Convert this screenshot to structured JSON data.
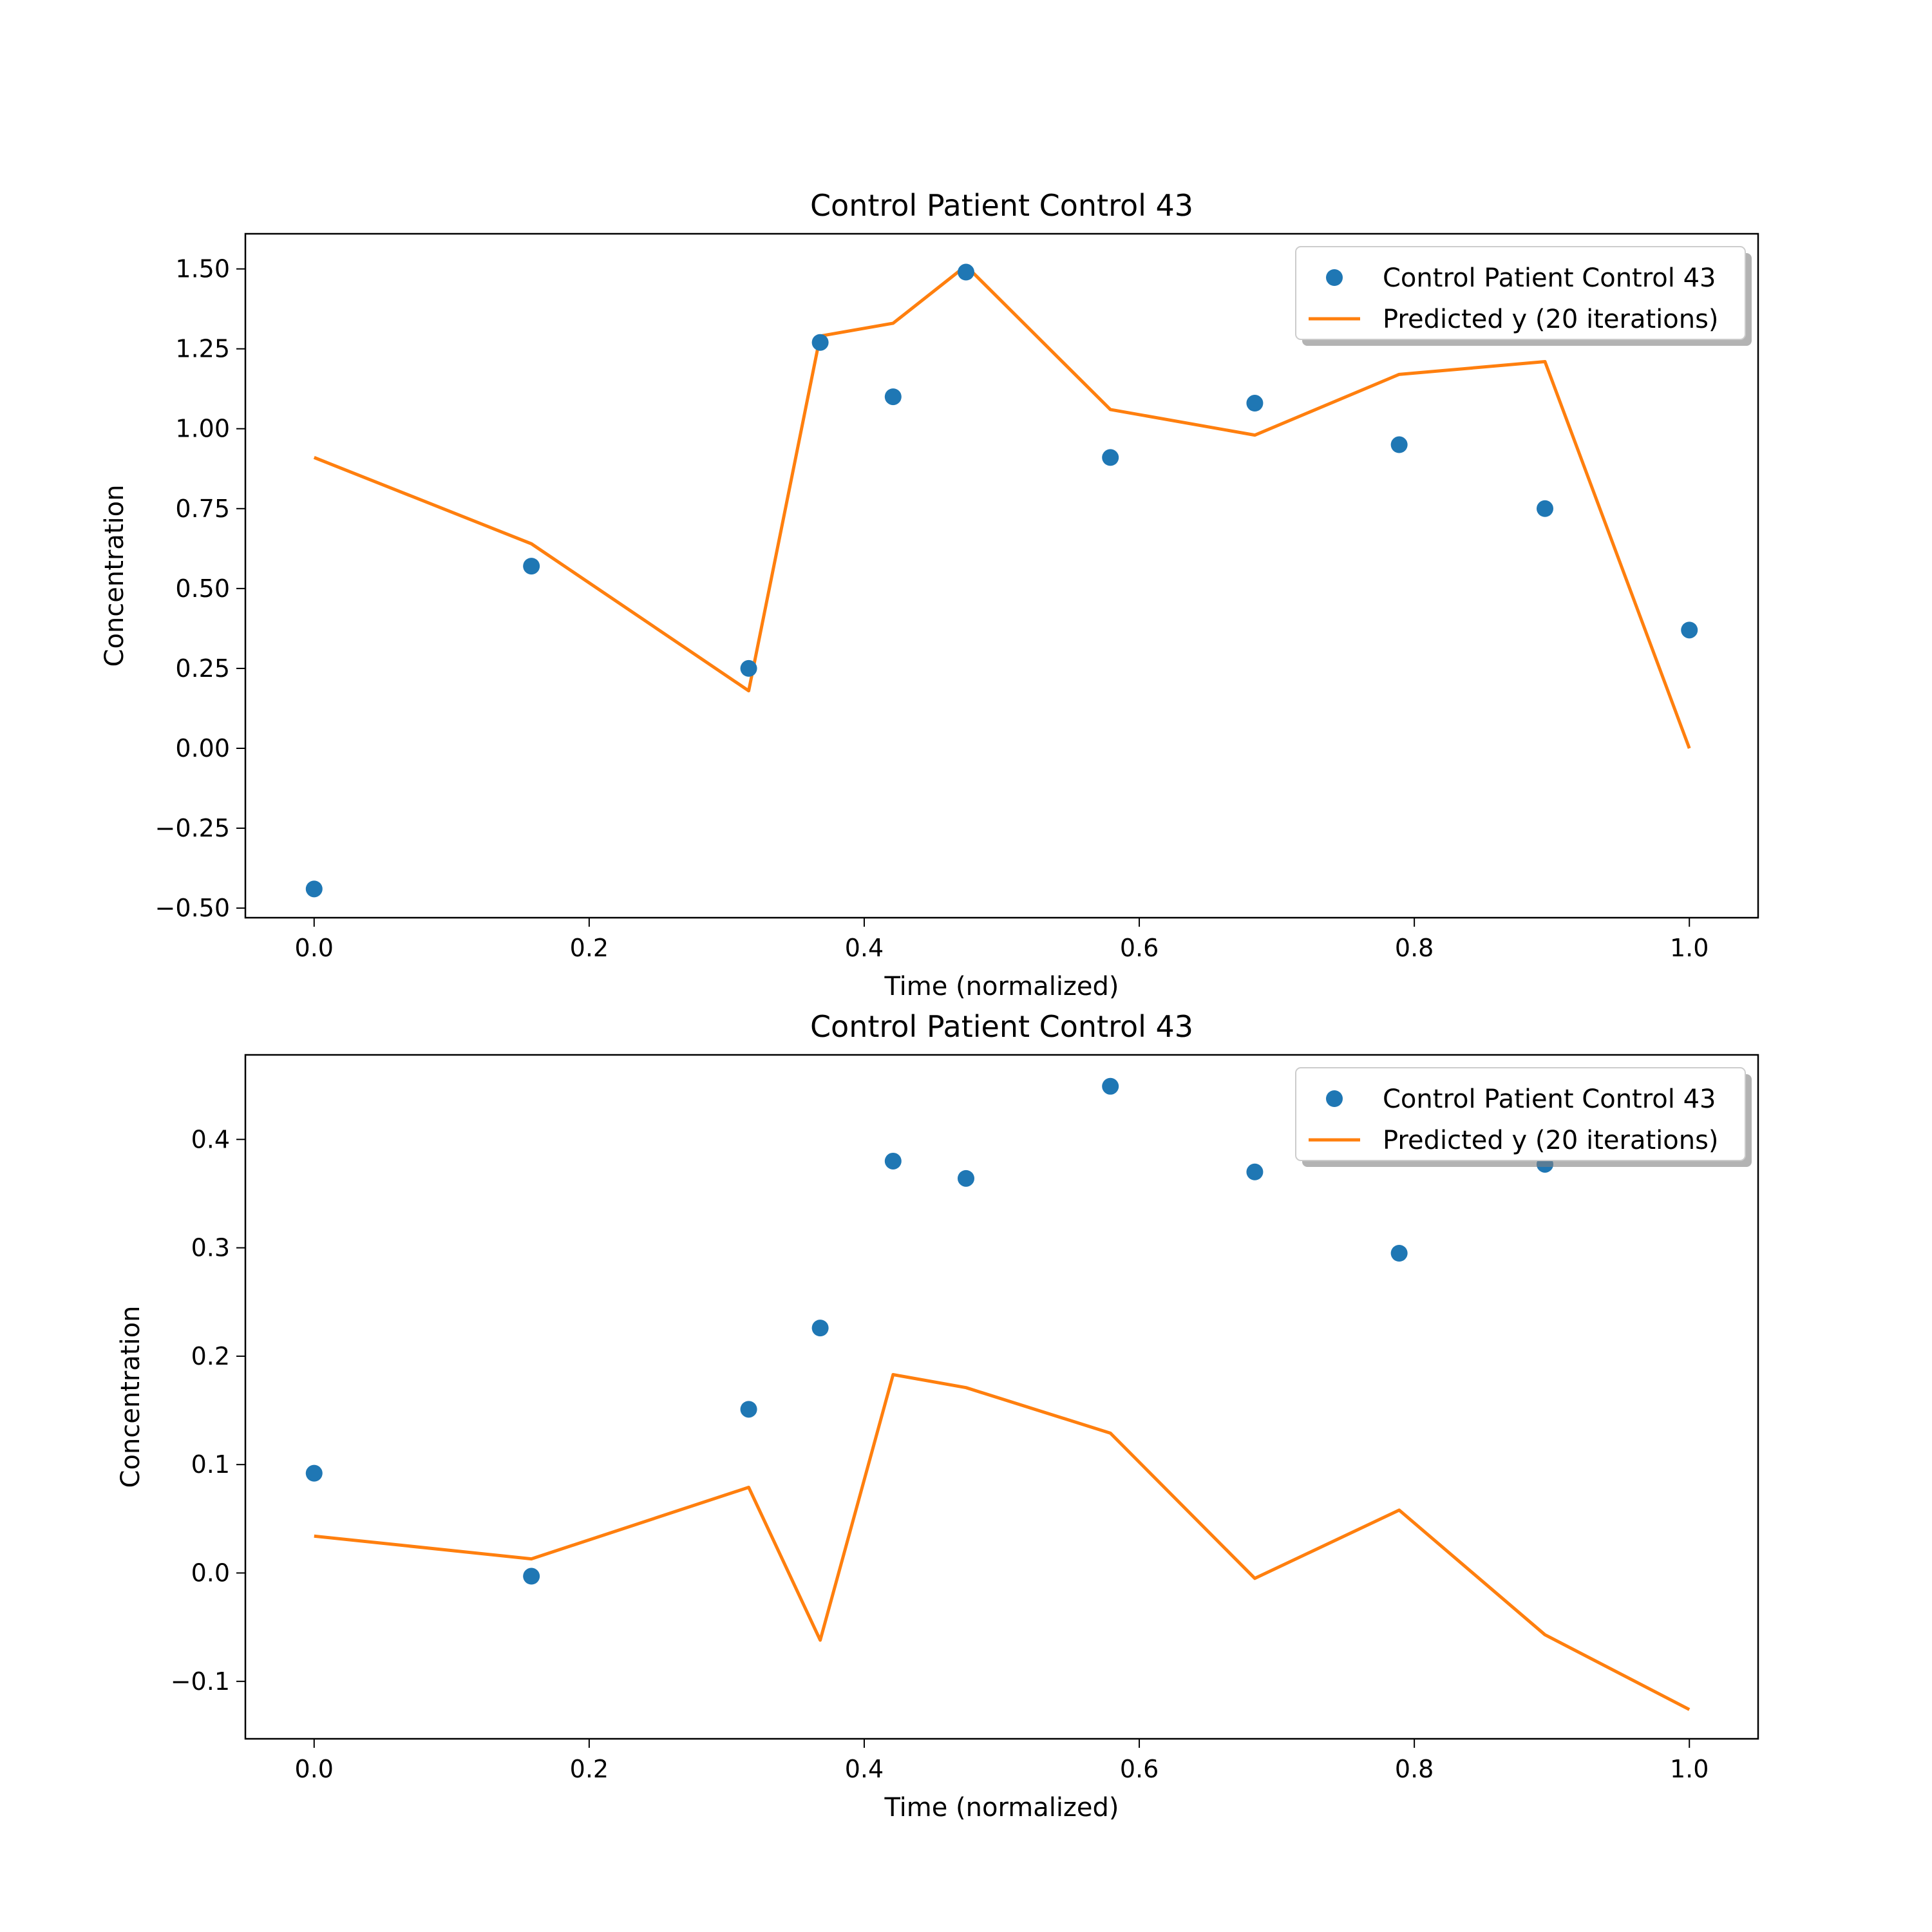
{
  "chart_data": [
    {
      "type": "line",
      "title": "Control Patient Control 43",
      "xlabel": "Time (normalized)",
      "ylabel": "Concentration",
      "xlim": [
        -0.05,
        1.05
      ],
      "ylim": [
        -0.53,
        1.61
      ],
      "xticks": [
        0.0,
        0.2,
        0.4,
        0.6,
        0.8,
        1.0
      ],
      "xtick_labels": [
        "0.0",
        "0.2",
        "0.4",
        "0.6",
        "0.8",
        "1.0"
      ],
      "yticks": [
        -0.5,
        -0.25,
        0.0,
        0.25,
        0.5,
        0.75,
        1.0,
        1.25,
        1.5
      ],
      "ytick_labels": [
        "−0.50",
        "−0.25",
        "0.00",
        "0.25",
        "0.50",
        "0.75",
        "1.00",
        "1.25",
        "1.50"
      ],
      "grid": false,
      "legend_position": "top-right",
      "x": [
        0.0,
        0.158,
        0.316,
        0.368,
        0.421,
        0.474,
        0.579,
        0.684,
        0.789,
        0.895,
        1.0
      ],
      "series": [
        {
          "name": "Control Patient Control 43",
          "kind": "scatter",
          "color": "#1f77b4",
          "values": [
            -0.44,
            0.57,
            0.25,
            1.27,
            1.1,
            1.49,
            0.91,
            1.08,
            0.95,
            0.75,
            0.37
          ]
        },
        {
          "name": "Predicted y (20 iterations)",
          "kind": "line",
          "color": "#ff7f0e",
          "values": [
            0.91,
            0.64,
            0.18,
            1.29,
            1.33,
            1.51,
            1.06,
            0.98,
            1.17,
            1.21,
            0.0
          ]
        }
      ]
    },
    {
      "type": "line",
      "title": "Control Patient Control 43",
      "xlabel": "Time (normalized)",
      "ylabel": "Concentration",
      "xlim": [
        -0.05,
        1.05
      ],
      "ylim": [
        -0.153,
        0.478
      ],
      "xticks": [
        0.0,
        0.2,
        0.4,
        0.6,
        0.8,
        1.0
      ],
      "xtick_labels": [
        "0.0",
        "0.2",
        "0.4",
        "0.6",
        "0.8",
        "1.0"
      ],
      "yticks": [
        -0.1,
        0.0,
        0.1,
        0.2,
        0.3,
        0.4
      ],
      "ytick_labels": [
        "−0.1",
        "0.0",
        "0.1",
        "0.2",
        "0.3",
        "0.4"
      ],
      "grid": false,
      "legend_position": "top-right",
      "x": [
        0.0,
        0.158,
        0.316,
        0.368,
        0.421,
        0.474,
        0.579,
        0.684,
        0.789,
        0.895,
        1.0
      ],
      "series": [
        {
          "name": "Control Patient Control 43",
          "kind": "scatter",
          "color": "#1f77b4",
          "values": [
            0.092,
            -0.003,
            0.151,
            0.226,
            0.38,
            0.364,
            0.449,
            0.37,
            0.295,
            0.377,
            0.398
          ]
        },
        {
          "name": "Predicted y (20 iterations)",
          "kind": "line",
          "color": "#ff7f0e",
          "values": [
            0.034,
            0.013,
            0.079,
            -0.062,
            0.183,
            0.171,
            0.129,
            -0.005,
            0.058,
            -0.057,
            -0.126
          ]
        }
      ]
    }
  ]
}
